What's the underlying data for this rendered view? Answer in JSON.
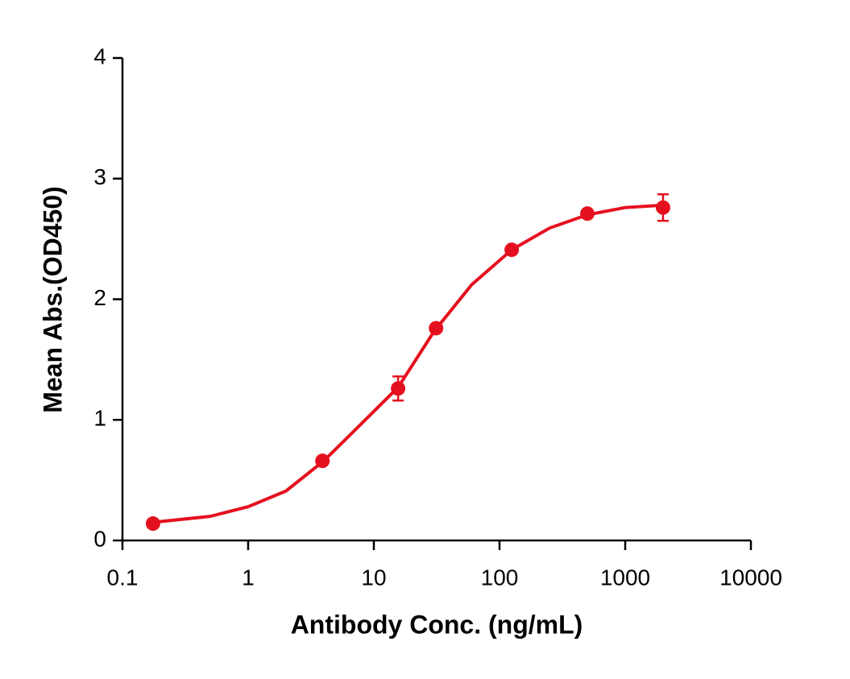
{
  "chart_data": {
    "type": "scatter",
    "x_label": "Antibody Conc. (ng/mL)",
    "y_label": "Mean Abs.(OD450)",
    "x_scale": "log",
    "xlim": [
      0.1,
      10000
    ],
    "xticks": [
      0.1,
      1,
      10,
      100,
      1000,
      10000
    ],
    "ylim": [
      0,
      4
    ],
    "yticks": [
      0,
      1,
      2,
      3,
      4
    ],
    "series": [
      {
        "color": "#e5101f",
        "x": [
          0.175,
          3.9,
          15.6,
          31.25,
          125,
          500,
          2000
        ],
        "values": [
          0.14,
          0.66,
          1.26,
          1.76,
          2.41,
          2.71,
          2.76
        ],
        "errors": [
          0.02,
          0.02,
          0.1,
          0.03,
          0.02,
          0.02,
          0.11
        ]
      },
      {
        "type": "line",
        "color": "#e5101f",
        "x": [
          0.175,
          0.5,
          1,
          2,
          4,
          8,
          15.6,
          30,
          60,
          125,
          250,
          500,
          1000,
          2000
        ],
        "values": [
          0.15,
          0.2,
          0.28,
          0.41,
          0.66,
          0.97,
          1.27,
          1.73,
          2.12,
          2.41,
          2.59,
          2.7,
          2.76,
          2.78
        ]
      }
    ]
  }
}
